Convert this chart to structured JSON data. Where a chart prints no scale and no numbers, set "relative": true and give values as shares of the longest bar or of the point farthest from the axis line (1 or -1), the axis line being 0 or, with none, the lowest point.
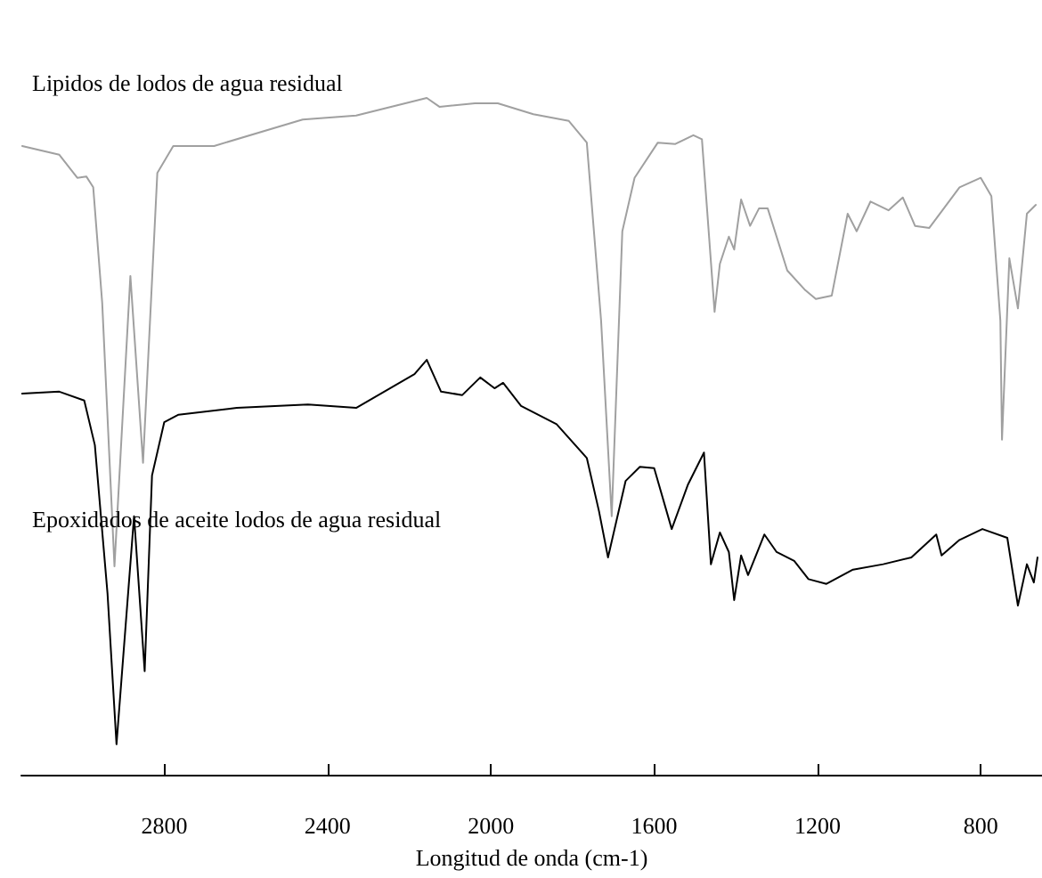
{
  "chart_data": {
    "type": "line",
    "xlabel": "Longitud de onda (cm-1)",
    "relative": true,
    "xlim": [
      3150,
      650
    ],
    "xticks": [
      2800,
      2400,
      2000,
      1600,
      1200,
      800
    ],
    "tick_labels": "x",
    "grid": false,
    "legend": false,
    "marker": "none",
    "line_style": "solid",
    "series": [
      {
        "name": "Lipidos de lodos de agua residual",
        "color": "#a0a0a0",
        "x": [
          3148,
          3057,
          3013,
          2991,
          2974,
          2952,
          2922,
          2883,
          2852,
          2817,
          2778,
          2678,
          2461,
          2330,
          2157,
          2126,
          2039,
          1983,
          1896,
          1809,
          1765,
          1730,
          1704,
          1678,
          1648,
          1591,
          1548,
          1504,
          1483,
          1452,
          1439,
          1417,
          1404,
          1387,
          1365,
          1343,
          1322,
          1274,
          1230,
          1204,
          1165,
          1126,
          1104,
          1070,
          1026,
          991,
          961,
          926,
          852,
          800,
          774,
          752,
          748,
          730,
          709,
          687,
          665
        ],
        "values": [
          0.929,
          0.916,
          0.882,
          0.884,
          0.868,
          0.697,
          0.308,
          0.737,
          0.461,
          0.889,
          0.929,
          0.929,
          0.968,
          0.974,
          1.0,
          0.987,
          0.992,
          0.992,
          0.976,
          0.966,
          0.934,
          0.671,
          0.382,
          0.803,
          0.882,
          0.934,
          0.932,
          0.945,
          0.939,
          0.684,
          0.755,
          0.795,
          0.776,
          0.85,
          0.811,
          0.837,
          0.837,
          0.745,
          0.716,
          0.703,
          0.708,
          0.829,
          0.803,
          0.847,
          0.834,
          0.853,
          0.811,
          0.808,
          0.868,
          0.882,
          0.855,
          0.671,
          0.495,
          0.763,
          0.689,
          0.829,
          0.842
        ]
      },
      {
        "name": "Epoxidados de aceite lodos de agua residual",
        "color": "#000000",
        "x": [
          3148,
          3057,
          2996,
          2970,
          2939,
          2917,
          2874,
          2848,
          2830,
          2800,
          2765,
          2622,
          2448,
          2330,
          2187,
          2157,
          2122,
          2070,
          2026,
          1991,
          1970,
          1926,
          1839,
          1765,
          1735,
          1713,
          1670,
          1635,
          1600,
          1557,
          1517,
          1478,
          1461,
          1439,
          1417,
          1404,
          1387,
          1370,
          1330,
          1300,
          1257,
          1222,
          1178,
          1113,
          1039,
          970,
          909,
          896,
          852,
          796,
          735,
          709,
          687,
          670,
          661
        ],
        "values": [
          0.563,
          0.566,
          0.553,
          0.487,
          0.268,
          0.045,
          0.382,
          0.153,
          0.442,
          0.521,
          0.532,
          0.542,
          0.547,
          0.542,
          0.592,
          0.613,
          0.566,
          0.561,
          0.587,
          0.571,
          0.579,
          0.545,
          0.518,
          0.468,
          0.389,
          0.321,
          0.434,
          0.455,
          0.453,
          0.363,
          0.429,
          0.476,
          0.311,
          0.358,
          0.329,
          0.258,
          0.324,
          0.295,
          0.355,
          0.329,
          0.316,
          0.289,
          0.282,
          0.303,
          0.311,
          0.321,
          0.355,
          0.324,
          0.347,
          0.363,
          0.35,
          0.25,
          0.311,
          0.284,
          0.321
        ]
      }
    ]
  }
}
